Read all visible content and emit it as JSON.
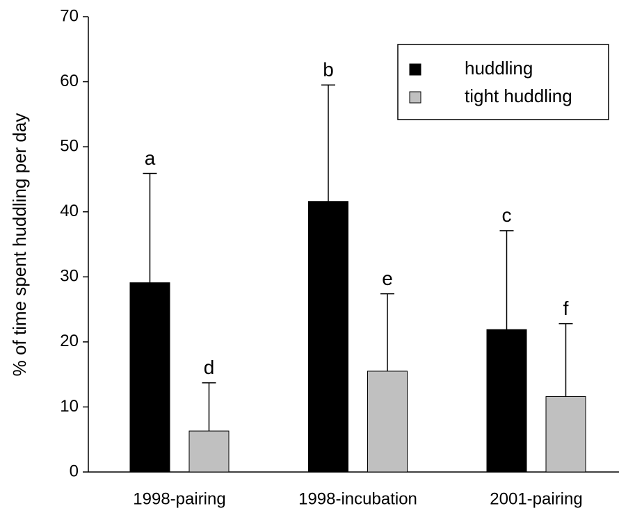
{
  "chart_data": {
    "type": "bar",
    "ylabel": "% of time spent huddling per day",
    "categories": [
      "1998-pairing",
      "1998-incubation",
      "2001-pairing"
    ],
    "series": [
      {
        "name": "huddling",
        "color": "#000000",
        "values": [
          29.1,
          41.6,
          21.9
        ],
        "errors": [
          16.8,
          17.9,
          15.2
        ],
        "annotations": [
          "a",
          "b",
          "c"
        ]
      },
      {
        "name": "tight huddling",
        "color": "#c0c0c0",
        "values": [
          6.3,
          15.5,
          11.6
        ],
        "errors": [
          7.4,
          11.9,
          11.2
        ],
        "annotations": [
          "d",
          "e",
          "f"
        ]
      }
    ],
    "ylim": [
      0,
      70
    ],
    "yticks": [
      0,
      10,
      20,
      30,
      40,
      50,
      60,
      70
    ],
    "legend": "upper right",
    "grid": false
  }
}
